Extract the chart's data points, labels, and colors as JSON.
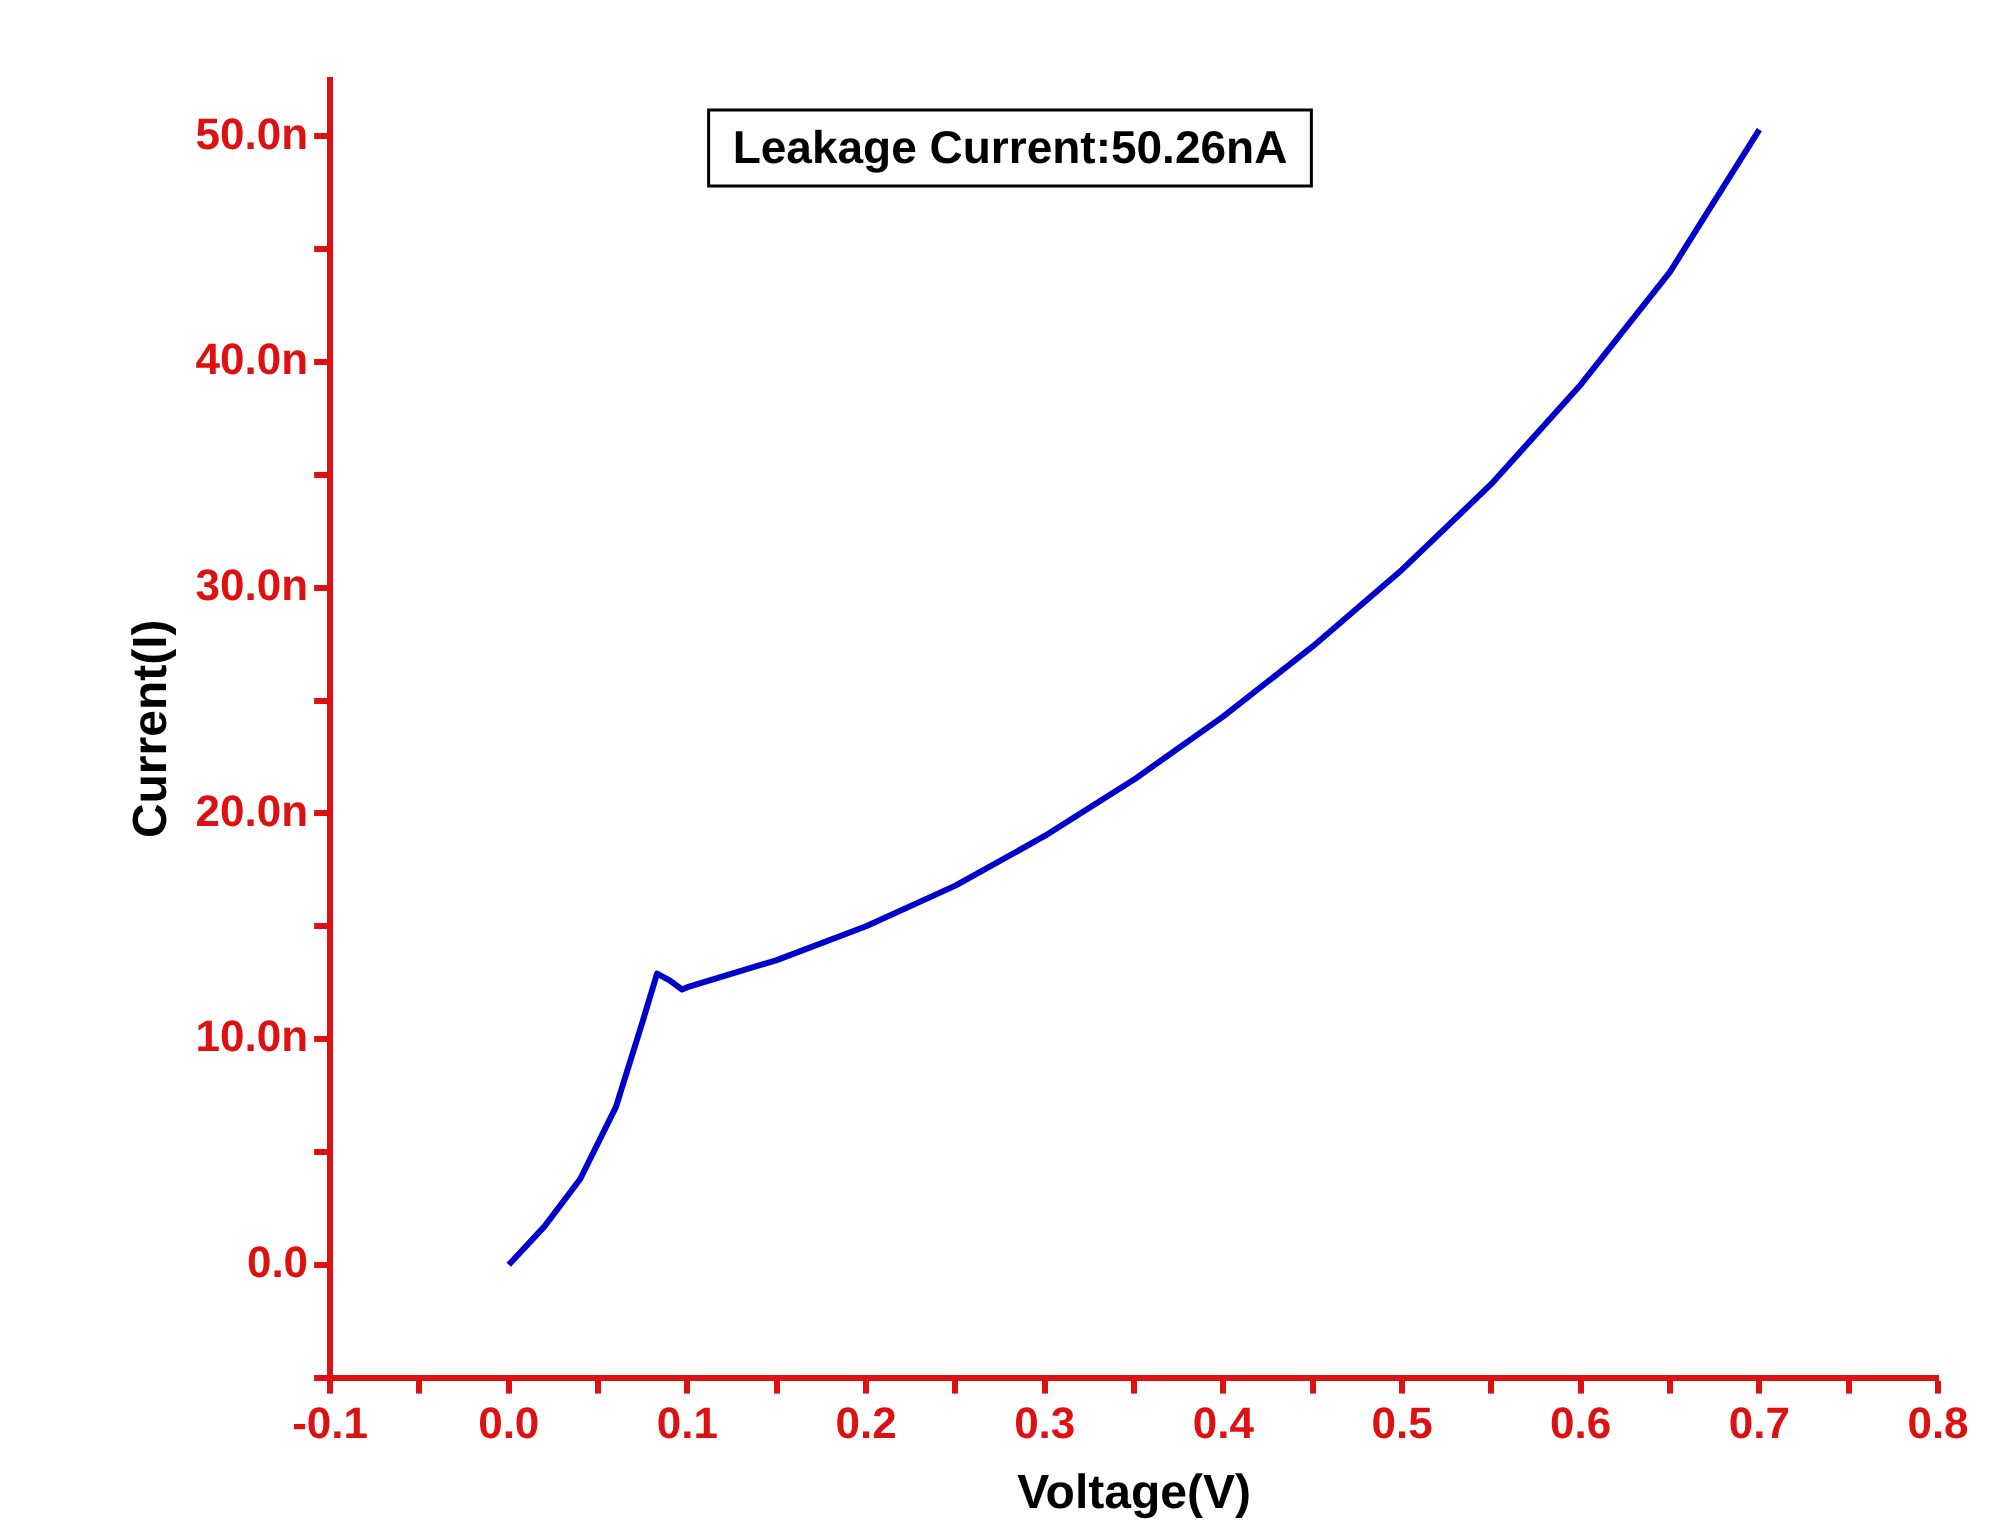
{
  "chart_data": {
    "type": "line",
    "xlabel": "Voltage(V)",
    "ylabel": "Current(I)",
    "annotations": [
      "Leakage Current:50.26nA"
    ],
    "series": [
      {
        "color": "#0000cc",
        "x": [
          0,
          0.02,
          0.04,
          0.06,
          0.075,
          0.083,
          0.09,
          0.097,
          0.1,
          0.15,
          0.2,
          0.25,
          0.3,
          0.35,
          0.4,
          0.45,
          0.5,
          0.55,
          0.6,
          0.65,
          0.7
        ],
        "values": [
          0,
          1.7,
          3.8,
          7.0,
          10.8,
          12.9,
          12.6,
          12.2,
          12.3,
          13.5,
          15.0,
          16.8,
          19.0,
          21.5,
          24.3,
          27.4,
          30.8,
          34.6,
          39.0,
          44.0,
          50.3
        ]
      }
    ],
    "xlim": [
      -0.1,
      0.8
    ],
    "xticks": [
      -0.1,
      {
        "value": -0.05,
        "label": null
      },
      {
        "value": 0,
        "label": "0.0"
      },
      {
        "value": 0.05,
        "label": null
      },
      0.1,
      {
        "value": 0.15,
        "label": null
      },
      0.2,
      {
        "value": 0.25,
        "label": null
      },
      0.3,
      {
        "value": 0.35,
        "label": null
      },
      0.4,
      {
        "value": 0.45,
        "label": null
      },
      0.5,
      {
        "value": 0.55,
        "label": null
      },
      0.6,
      {
        "value": 0.65,
        "label": null
      },
      0.7,
      {
        "value": 0.75,
        "label": null
      },
      0.8
    ],
    "ylim": [
      -5,
      52.5
    ],
    "yticks": [
      {
        "value": -5,
        "label": null
      },
      {
        "value": 0,
        "label": "0.0"
      },
      {
        "value": 5,
        "label": null
      },
      {
        "value": 10,
        "label": "10.0n"
      },
      {
        "value": 15,
        "label": null
      },
      {
        "value": 20,
        "label": "20.0n"
      },
      {
        "value": 25,
        "label": null
      },
      {
        "value": 30,
        "label": "30.0n"
      },
      {
        "value": 35,
        "label": null
      },
      {
        "value": 40,
        "label": "40.0n"
      },
      {
        "value": 45,
        "label": null
      },
      {
        "value": 50,
        "label": "50.0n"
      }
    ],
    "grid": false,
    "legend": false,
    "marker": "none",
    "line_style": "solid"
  }
}
